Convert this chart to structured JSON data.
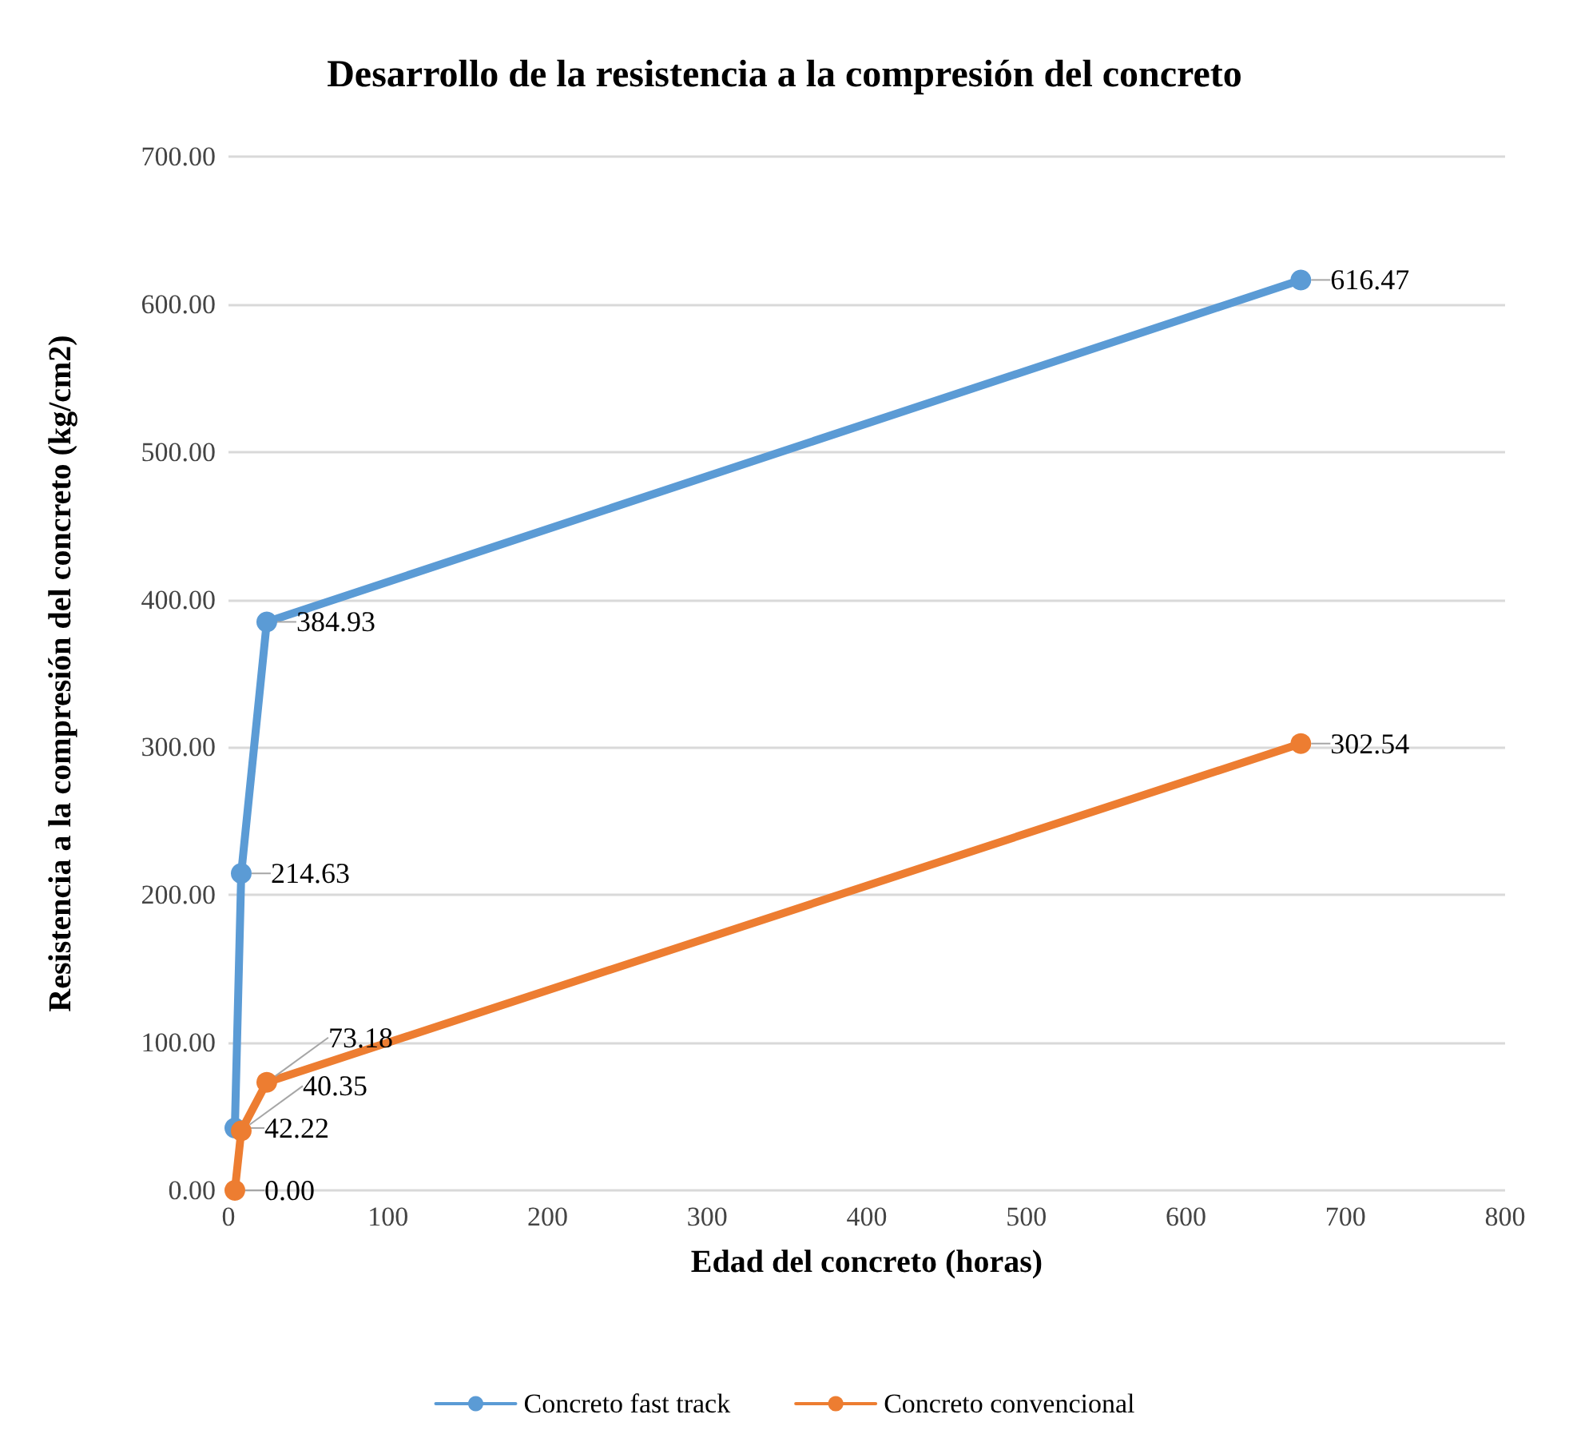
{
  "chart_data": {
    "type": "line",
    "title": "Desarrollo de la resistencia a la compresión del concreto",
    "xlabel": "Edad del concreto (horas)",
    "ylabel": "Resistencia a la compresión del concreto (kg/cm2)",
    "series": [
      {
        "name": "Concreto fast track",
        "color": "#5b9bd5",
        "x": [
          4,
          8,
          24,
          672
        ],
        "values": [
          42.22,
          214.63,
          384.93,
          616.47
        ],
        "value_labels": [
          "42.22",
          "214.63",
          "384.93",
          "616.47"
        ]
      },
      {
        "name": "Concreto convencional",
        "color": "#ed7d31",
        "x": [
          4,
          8,
          24,
          672
        ],
        "values": [
          0.0,
          40.35,
          73.18,
          302.54
        ],
        "value_labels": [
          "0.00",
          "40.35",
          "73.18",
          "302.54"
        ]
      }
    ],
    "xlim": [
      0,
      800
    ],
    "xticks": [
      0,
      100,
      200,
      300,
      400,
      500,
      600,
      700,
      800
    ],
    "ylim": [
      0,
      700
    ],
    "yticks": [
      {
        "value": 0,
        "label": "0.00"
      },
      {
        "value": 100,
        "label": "100.00"
      },
      {
        "value": 200,
        "label": "200.00"
      },
      {
        "value": 300,
        "label": "300.00"
      },
      {
        "value": 400,
        "label": "400.00"
      },
      {
        "value": 500,
        "label": "500.00"
      },
      {
        "value": 600,
        "label": "600.00"
      },
      {
        "value": 700,
        "label": "700.00"
      }
    ],
    "grid": "y",
    "legend": "bottom",
    "marker": "circle",
    "line_style": "solid"
  }
}
